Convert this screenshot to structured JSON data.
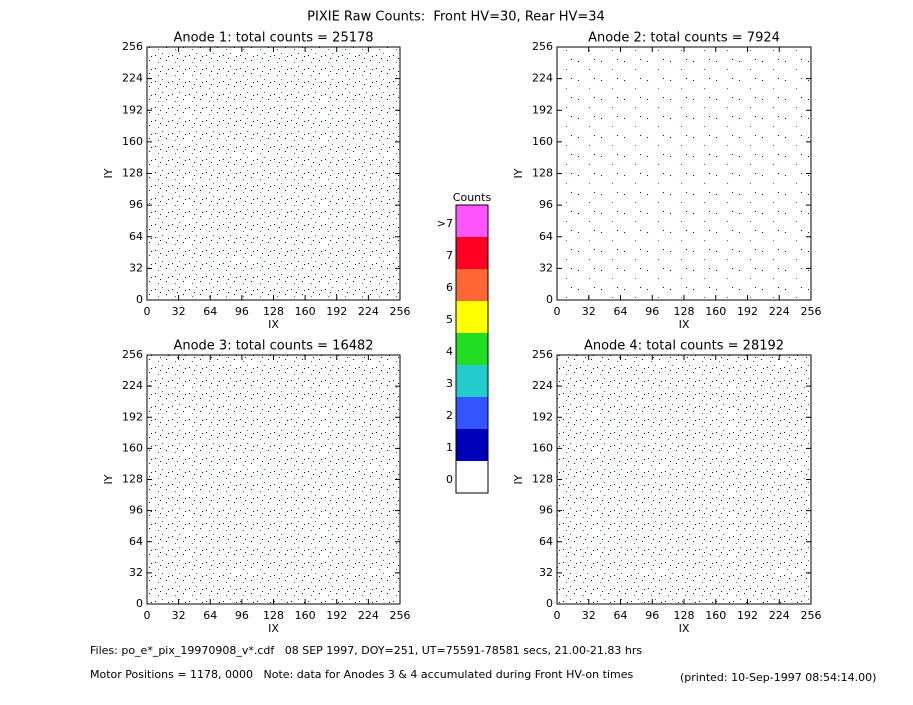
{
  "title": "PIXIE Raw Counts:  Front HV=30, Rear HV=34",
  "colorbar": {
    "title": "Counts",
    "labels": [
      "0",
      "1",
      "2",
      "3",
      "4",
      "5",
      "6",
      "7",
      ">7"
    ],
    "colors": [
      "#ffffff",
      "#0000bb",
      "#3355ff",
      "#22cccc",
      "#22dd22",
      "#ffff00",
      "#ff6633",
      "#ff0022",
      "#ff55ff"
    ]
  },
  "footer": {
    "files": "Files: po_e*_pix_19970908_v*.cdf   08 SEP 1997, DOY=251, UT=75591-78581 secs, 21.00-21.83 hrs",
    "note": "Motor Positions = 1178, 0000   Note: data for Anodes 3 & 4 accumulated during Front HV-on times",
    "printed": "(printed: 10-Sep-1997 08:54:14.00)"
  },
  "chart_data": [
    {
      "type": "heatmap",
      "title": "Anode 1: total counts = 25178",
      "xlabel": "IX",
      "ylabel": "IY",
      "xlim": [
        0,
        256
      ],
      "ylim": [
        0,
        256
      ],
      "xticks": [
        0,
        32,
        64,
        96,
        128,
        160,
        192,
        224,
        256
      ],
      "yticks": [
        0,
        32,
        64,
        96,
        128,
        160,
        192,
        224,
        256
      ]
    },
    {
      "type": "heatmap",
      "title": "Anode 2: total counts = 7924",
      "xlabel": "IX",
      "ylabel": "IY",
      "xlim": [
        0,
        256
      ],
      "ylim": [
        0,
        256
      ],
      "xticks": [
        0,
        32,
        64,
        96,
        128,
        160,
        192,
        224,
        256
      ],
      "yticks": [
        0,
        32,
        64,
        96,
        128,
        160,
        192,
        224,
        256
      ]
    },
    {
      "type": "heatmap",
      "title": "Anode 3: total counts = 16482",
      "xlabel": "IX",
      "ylabel": "IY",
      "xlim": [
        0,
        256
      ],
      "ylim": [
        0,
        256
      ],
      "xticks": [
        0,
        32,
        64,
        96,
        128,
        160,
        192,
        224,
        256
      ],
      "yticks": [
        0,
        32,
        64,
        96,
        128,
        160,
        192,
        224,
        256
      ]
    },
    {
      "type": "heatmap",
      "title": "Anode 4: total counts = 28192",
      "xlabel": "IX",
      "ylabel": "IY",
      "xlim": [
        0,
        256
      ],
      "ylim": [
        0,
        256
      ],
      "xticks": [
        0,
        32,
        64,
        96,
        128,
        160,
        192,
        224,
        256
      ],
      "yticks": [
        0,
        32,
        64,
        96,
        128,
        160,
        192,
        224,
        256
      ]
    }
  ]
}
